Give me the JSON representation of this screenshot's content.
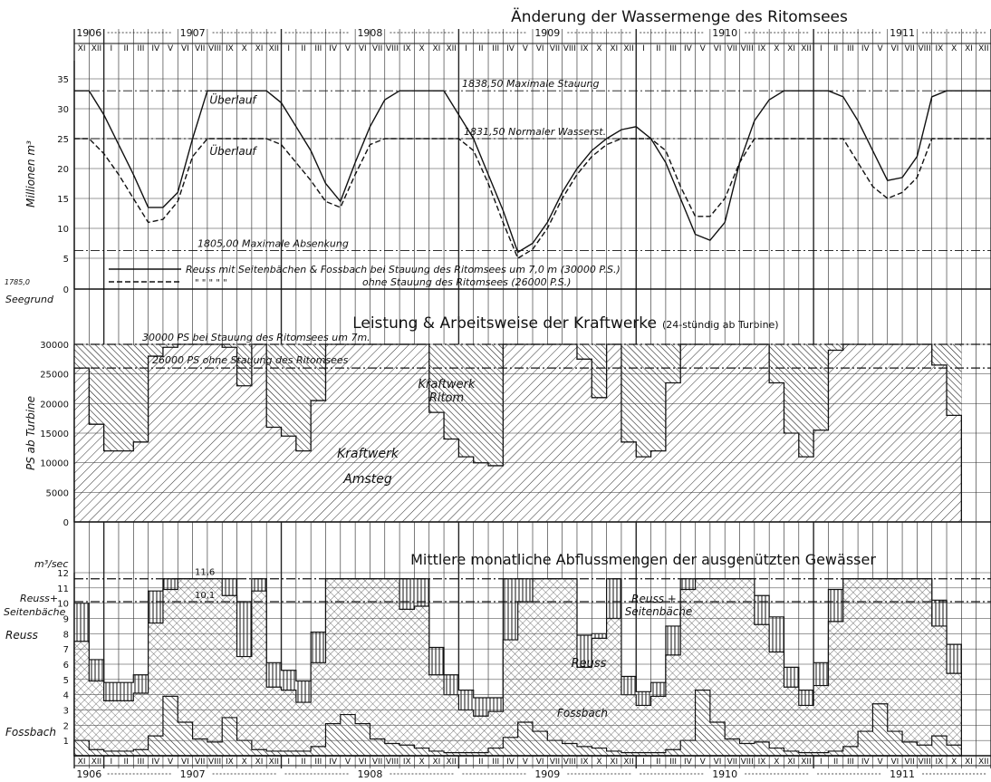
{
  "months": [
    "I",
    "II",
    "III",
    "IV",
    "V",
    "VI",
    "VII",
    "VIII",
    "IX",
    "X",
    "XI",
    "XII"
  ],
  "years": [
    "1906",
    "1907",
    "1908",
    "1909",
    "1910",
    "1911"
  ],
  "chart_data": [
    {
      "type": "line",
      "title": "Änderung der Wassermenge des Ritomsees",
      "ylabel": "Millionen m³",
      "ylim": [
        0,
        35
      ],
      "yticks": [
        "5",
        "10",
        "15",
        "20",
        "25",
        "30",
        "35"
      ],
      "zero_label": "1785,0",
      "zero_sublabel": "Seegrund",
      "x_start": "1906-XI",
      "x_end": "1911-XII",
      "levels": [
        {
          "value": 33,
          "label": "1838,50 Maximale Stauung"
        },
        {
          "value": 25,
          "label": "1831,50 Normaler Wasserst."
        },
        {
          "value": 6.3,
          "label": "1805,00 Maximale Absenkung"
        }
      ],
      "annotations": [
        "Überlauf",
        "Überlauf"
      ],
      "legend": {
        "solid": "Reuss mit Seitenbächen & Fossbach bei Stauung des Ritomsees um 7,0 m (30000 P.S.)",
        "dashed_prefix": "\"      \"        \"      \"       \"",
        "dashed": "ohne Stauung des Ritomsees (26000 P.S.)"
      },
      "series": [
        {
          "style": "solid",
          "values": [
            33,
            33,
            29,
            24,
            19,
            13.5,
            13.5,
            16,
            25,
            33,
            33,
            33,
            33,
            33,
            31,
            27,
            23,
            17.5,
            14.5,
            21,
            27,
            31.5,
            33,
            33,
            33,
            33,
            29,
            25,
            19,
            13,
            6,
            7.5,
            11,
            16,
            20,
            23,
            25,
            26.5,
            27,
            25,
            21,
            15,
            9,
            8,
            11,
            21,
            28,
            31.5,
            33,
            33,
            33,
            33,
            32,
            28,
            23,
            18,
            18.5,
            22,
            32,
            33,
            33,
            33,
            33,
            33,
            33,
            30
          ]
        },
        {
          "style": "dashed",
          "values": [
            25,
            25,
            22.5,
            19,
            15,
            11,
            11.5,
            14.5,
            22,
            25,
            25,
            25,
            25,
            25,
            24,
            21,
            18,
            14.5,
            13.5,
            19,
            24,
            25,
            25,
            25,
            25,
            25,
            25,
            23,
            17.5,
            11,
            5,
            6.5,
            10,
            15,
            19,
            22,
            24,
            25,
            25,
            25,
            23,
            17,
            12,
            12,
            15,
            21,
            25,
            25,
            25,
            25,
            25,
            25,
            25,
            21,
            17,
            15,
            16,
            18.5,
            25,
            25,
            25,
            25,
            25,
            25,
            25,
            24
          ]
        }
      ]
    },
    {
      "type": "area",
      "title": "Leistung & Arbeitsweise der Kraftwerke",
      "title_note": "(24-stündig ab Turbine)",
      "ylabel": "PS ab Turbine",
      "ylim": [
        0,
        30000
      ],
      "yticks": [
        "0",
        "5000",
        "10000",
        "15000",
        "20000",
        "25000",
        "30000"
      ],
      "levels": [
        {
          "value": 30000,
          "label": "30000 PS bei Stauung des Ritomsees um 7m."
        },
        {
          "value": 26000,
          "label": "26000 PS ohne Stauung des Ritomsees"
        }
      ],
      "area_labels": [
        "Kraftwerk",
        "Ritom",
        "Kraftwerk",
        "Amsteg"
      ],
      "series": [
        {
          "name": "Kraftwerk Amsteg",
          "values": [
            26000,
            16500,
            12000,
            12000,
            13500,
            28000,
            29500,
            30000,
            30000,
            30000,
            29500,
            23000,
            30000,
            16000,
            14500,
            12000,
            20500,
            30000,
            30000,
            30000,
            30000,
            30000,
            30000,
            30000,
            18500,
            14000,
            11000,
            10000,
            9500,
            30000,
            30000,
            30000,
            30000,
            30000,
            27500,
            21000,
            30000,
            13500,
            11000,
            12000,
            23500,
            30000,
            30000,
            30000,
            30000,
            30000,
            30000,
            23500,
            15000,
            11000,
            15500,
            29000,
            30000,
            30000,
            30000,
            30000,
            30000,
            30000,
            26500,
            18000
          ]
        },
        {
          "name": "Kraftwerk Ritom",
          "values": [
            30000,
            30000,
            30000,
            30000,
            30000,
            30000,
            30000,
            30000,
            30000,
            30000,
            30000,
            30000,
            30000,
            30000,
            30000,
            30000,
            30000,
            30000,
            30000,
            30000,
            30000,
            30000,
            30000,
            30000,
            30000,
            30000,
            30000,
            30000,
            30000,
            30000,
            30000,
            30000,
            30000,
            30000,
            30000,
            30000,
            30000,
            30000,
            30000,
            30000,
            30000,
            30000,
            30000,
            30000,
            30000,
            30000,
            30000,
            30000,
            30000,
            30000,
            30000,
            30000,
            30000,
            30000,
            30000,
            30000,
            30000,
            30000,
            30000,
            30000
          ]
        }
      ]
    },
    {
      "type": "area",
      "title": "Mittlere monatliche Abflussmengen der ausgenützten Gewässer",
      "ylabel": "m³/sec",
      "ylim": [
        0,
        12
      ],
      "yticks": [
        "1",
        "2",
        "3",
        "4",
        "5",
        "6",
        "7",
        "8",
        "9",
        "10",
        "11",
        "12"
      ],
      "levels": [
        {
          "value": 11.6,
          "label": "11,6"
        },
        {
          "value": 10.1,
          "label": "10,1"
        }
      ],
      "side_labels": [
        "Reuss+",
        "Seitenbäche",
        "Reuss",
        "Fossbach"
      ],
      "area_labels": [
        "Reuss +",
        "Seitenbäche",
        "Reuss",
        "Fossbach"
      ],
      "series": [
        {
          "name": "Reuss + Seitenbäche",
          "values": [
            10,
            6.3,
            4.8,
            4.8,
            5.3,
            10.8,
            11.6,
            11.6,
            11.6,
            11.6,
            11.6,
            10.1,
            11.6,
            6.1,
            5.6,
            4.9,
            8.1,
            11.6,
            11.6,
            11.6,
            11.6,
            11.6,
            11.6,
            11.6,
            7.1,
            5.3,
            4.3,
            3.8,
            3.8,
            11.6,
            11.6,
            11.6,
            11.6,
            11.6,
            7.9,
            8,
            11.6,
            5.2,
            4.2,
            4.8,
            8.5,
            11.6,
            11.6,
            11.6,
            11.6,
            11.6,
            10.5,
            9.1,
            5.8,
            4.3,
            6.1,
            10.9,
            11.6,
            11.6,
            11.6,
            11.6,
            11.6,
            11.6,
            10.2,
            7.3
          ]
        },
        {
          "name": "Reuss",
          "values": [
            7.5,
            4.9,
            3.6,
            3.6,
            4.1,
            8.7,
            10.9,
            11.6,
            11.6,
            11.6,
            10.5,
            6.5,
            10.8,
            4.5,
            4.3,
            3.5,
            6.1,
            11.6,
            11.6,
            11.6,
            11.6,
            11.6,
            9.6,
            9.8,
            5.3,
            4,
            3,
            2.6,
            2.9,
            7.6,
            10.1,
            11.6,
            11.6,
            11.6,
            5.8,
            7.7,
            9,
            4,
            3.3,
            3.9,
            6.6,
            10.9,
            11.6,
            11.6,
            11.6,
            11.6,
            8.6,
            6.8,
            4.5,
            3.3,
            4.6,
            8.8,
            11.6,
            11.6,
            11.6,
            11.6,
            11.6,
            11.6,
            8.5,
            5.4
          ]
        },
        {
          "name": "Fossbach",
          "values": [
            1,
            0.4,
            0.3,
            0.3,
            0.4,
            1.3,
            3.9,
            2.2,
            1.1,
            0.9,
            2.5,
            1,
            0.4,
            0.3,
            0.3,
            0.3,
            0.6,
            2.1,
            2.7,
            2.1,
            1.1,
            0.8,
            0.7,
            0.5,
            0.3,
            0.2,
            0.2,
            0.2,
            0.5,
            1.2,
            2.2,
            1.6,
            1,
            0.8,
            0.6,
            0.5,
            0.3,
            0.2,
            0.2,
            0.2,
            0.4,
            1,
            4.3,
            2.2,
            1.1,
            0.8,
            0.9,
            0.5,
            0.3,
            0.2,
            0.2,
            0.3,
            0.6,
            1.6,
            3.4,
            1.6,
            0.9,
            0.7,
            1.3,
            0.7
          ]
        }
      ]
    }
  ]
}
